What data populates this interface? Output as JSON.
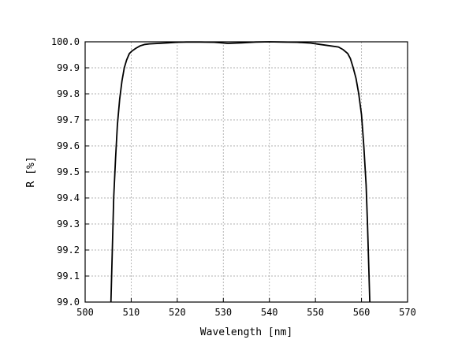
{
  "chart_data": {
    "type": "line",
    "title": "",
    "xlabel": "Wavelength [nm]",
    "ylabel": "R [%]",
    "xlim": [
      500,
      570
    ],
    "ylim": [
      99.0,
      100.0
    ],
    "x_ticks": [
      500,
      510,
      520,
      530,
      540,
      550,
      560,
      570
    ],
    "x_tick_labels": [
      "500",
      "510",
      "520",
      "530",
      "540",
      "550",
      "560",
      "570"
    ],
    "y_ticks": [
      99.0,
      99.1,
      99.2,
      99.3,
      99.4,
      99.5,
      99.6,
      99.7,
      99.8,
      99.9,
      100.0
    ],
    "y_tick_labels": [
      "99.0",
      "99.1",
      "99.2",
      "99.3",
      "99.4",
      "99.5",
      "99.6",
      "99.7",
      "99.8",
      "99.9",
      "100.0"
    ],
    "grid": true,
    "series": [
      {
        "x": [
          505.6,
          505.9,
          506.2,
          506.6,
          507.0,
          507.5,
          508.0,
          508.5,
          509.0,
          509.6,
          510.2,
          511.0,
          512.0,
          513.0,
          514.0,
          516.0,
          518.0,
          520.0,
          522.0,
          525.0,
          528.0,
          531.0,
          534.0,
          537.0,
          540.0,
          543.0,
          546.0,
          549.0,
          551.0,
          553.0,
          555.0,
          556.0,
          557.0,
          557.6,
          558.2,
          558.8,
          559.4,
          560.0,
          560.5,
          561.0,
          561.3,
          561.6,
          561.8
        ],
        "y": [
          99.0,
          99.2,
          99.4,
          99.55,
          99.68,
          99.78,
          99.85,
          99.9,
          99.93,
          99.955,
          99.965,
          99.975,
          99.985,
          99.99,
          99.992,
          99.994,
          99.996,
          99.998,
          99.999,
          99.999,
          99.998,
          99.994,
          99.996,
          99.999,
          100.0,
          99.999,
          99.998,
          99.995,
          99.99,
          99.985,
          99.98,
          99.97,
          99.955,
          99.935,
          99.9,
          99.86,
          99.8,
          99.72,
          99.6,
          99.45,
          99.3,
          99.12,
          99.0
        ]
      }
    ]
  }
}
